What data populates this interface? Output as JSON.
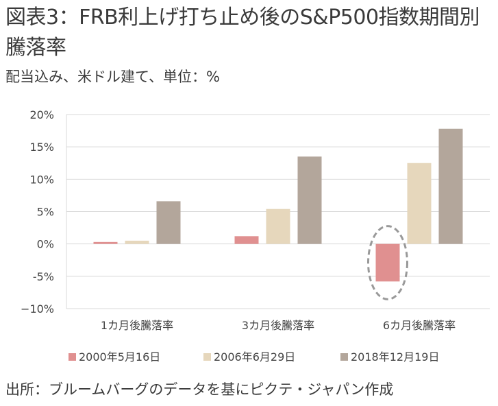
{
  "title": "図表3：FRB利上げ打ち止め後のS&P500指数期間別騰落率",
  "subtitle": "配当込み、米ドル建て、単位：%",
  "source": "出所：ブルームバーグのデータを基にピクテ・ジャパン作成",
  "chart_data": {
    "type": "bar",
    "categories": [
      "1カ月後騰落率",
      "3カ月後騰落率",
      "6カ月後騰落率"
    ],
    "series": [
      {
        "name": "2000年5月16日",
        "values": [
          0.3,
          1.2,
          -5.8
        ],
        "color": "#e09090"
      },
      {
        "name": "2006年6月29日",
        "values": [
          0.5,
          5.4,
          12.5
        ],
        "color": "#e6d7bc"
      },
      {
        "name": "2018年12月19日",
        "values": [
          6.6,
          13.5,
          17.8
        ],
        "color": "#b3a69b"
      }
    ],
    "ylim": [
      -10,
      20
    ],
    "yticks": [
      -10,
      -5,
      0,
      5,
      10,
      15,
      20
    ],
    "ytick_labels": [
      "−10%",
      "-5%",
      "0%",
      "5%",
      "10%",
      "15%",
      "20%"
    ],
    "grid": true,
    "gridline_color": "#d9d9d9",
    "highlight": {
      "series": 0,
      "category": 2,
      "shape": "dashed-ellipse",
      "color": "#999999"
    },
    "legend_position": "bottom"
  }
}
